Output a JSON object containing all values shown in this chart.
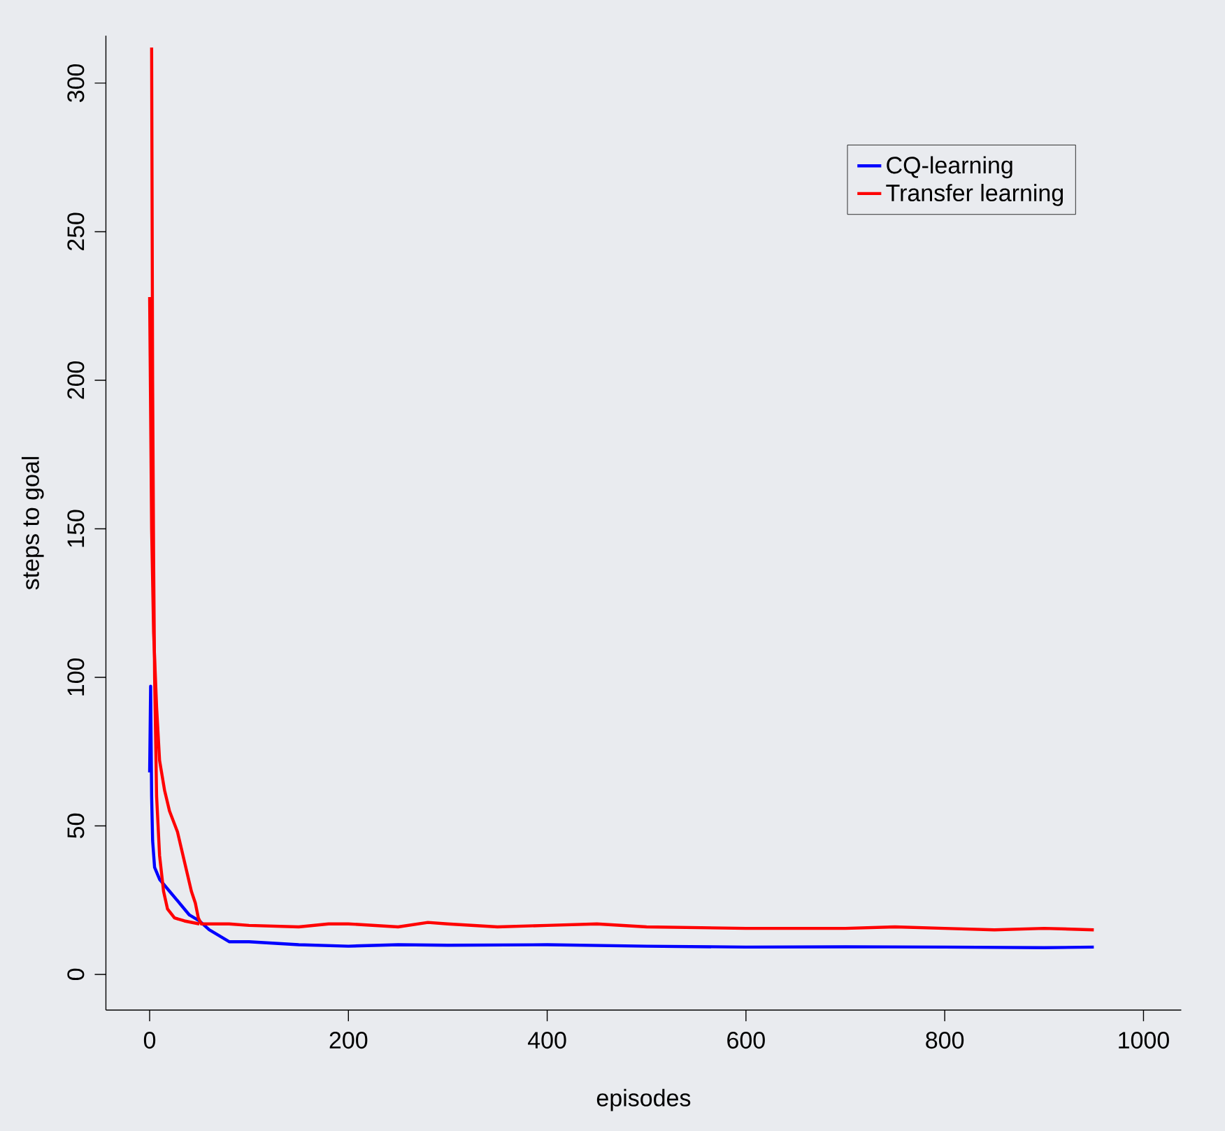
{
  "chart_data": {
    "type": "line",
    "xlabel": "episodes",
    "ylabel": "steps to goal",
    "xlim": [
      -44,
      1038
    ],
    "ylim": [
      -12,
      316
    ],
    "xticks": [
      0,
      200,
      400,
      600,
      800,
      1000
    ],
    "yticks": [
      0,
      50,
      100,
      150,
      200,
      250,
      300
    ],
    "legend": "top right",
    "grid": false,
    "marker": "none",
    "line_style": "solid",
    "series": [
      {
        "name": "CQ-learning",
        "color": "#0000ff",
        "x": [
          0,
          1,
          2,
          3,
          5,
          10,
          20,
          30,
          40,
          50,
          60,
          70,
          80,
          100,
          150,
          200,
          250,
          300,
          400,
          500,
          600,
          700,
          800,
          900,
          950
        ],
        "values": [
          68,
          97,
          60,
          45,
          36,
          32,
          28,
          24,
          20,
          18,
          15,
          13,
          11,
          11,
          10,
          9.5,
          10,
          9.8,
          10,
          9.5,
          9.2,
          9.3,
          9.2,
          9,
          9.2
        ]
      },
      {
        "name": "Transfer learning",
        "color": "#ff0000",
        "x": [
          0,
          2,
          4,
          7,
          10,
          15,
          20,
          28,
          35,
          42,
          46,
          49,
          52,
          60,
          80,
          100,
          150,
          180,
          200,
          250,
          280,
          300,
          350,
          400,
          450,
          500,
          600,
          700,
          750,
          800,
          850,
          900,
          950
        ],
        "values": [
          228,
          150,
          115,
          90,
          72,
          62,
          55,
          48,
          38,
          28,
          24,
          19,
          17,
          17,
          17,
          16.5,
          16,
          17,
          17,
          16,
          17.5,
          17,
          16,
          16.5,
          17,
          16,
          15.5,
          15.5,
          16,
          15.5,
          15,
          15.5,
          15
        ]
      },
      {
        "color": "#ff0000",
        "x": [
          2,
          3,
          4,
          5,
          7,
          10,
          14,
          18,
          25,
          35,
          50
        ],
        "values": [
          312,
          200,
          140,
          100,
          60,
          40,
          28,
          22,
          19,
          18,
          17
        ]
      }
    ]
  }
}
